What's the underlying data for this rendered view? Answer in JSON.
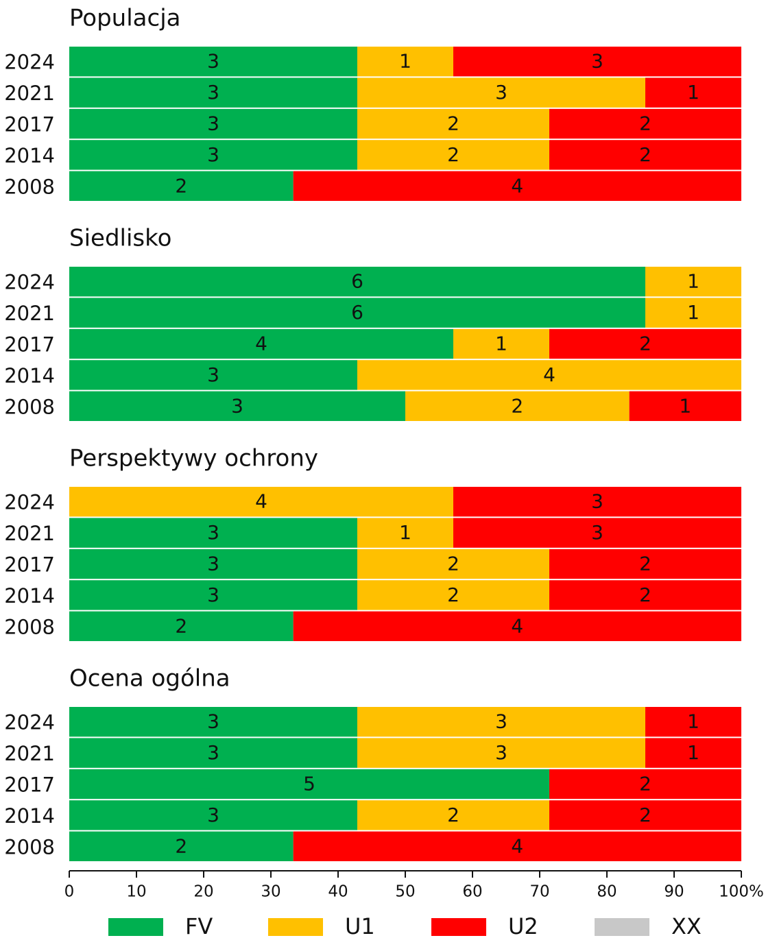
{
  "chart_data": [
    {
      "type": "stacked_percent_bar",
      "title": "Populacja",
      "categories": [
        "2024",
        "2021",
        "2017",
        "2014",
        "2008"
      ],
      "series": [
        {
          "name": "FV",
          "color": "#00b050",
          "values": [
            3,
            3,
            3,
            3,
            2
          ]
        },
        {
          "name": "U1",
          "color": "#ffc000",
          "values": [
            1,
            3,
            2,
            2,
            0
          ]
        },
        {
          "name": "U2",
          "color": "#ff0000",
          "values": [
            3,
            1,
            2,
            2,
            4
          ]
        },
        {
          "name": "XX",
          "color": "#c8c8c8",
          "values": [
            0,
            0,
            0,
            0,
            0
          ]
        }
      ]
    },
    {
      "type": "stacked_percent_bar",
      "title": "Siedlisko",
      "categories": [
        "2024",
        "2021",
        "2017",
        "2014",
        "2008"
      ],
      "series": [
        {
          "name": "FV",
          "color": "#00b050",
          "values": [
            6,
            6,
            4,
            3,
            3
          ]
        },
        {
          "name": "U1",
          "color": "#ffc000",
          "values": [
            1,
            1,
            1,
            4,
            2
          ]
        },
        {
          "name": "U2",
          "color": "#ff0000",
          "values": [
            0,
            0,
            2,
            0,
            1
          ]
        },
        {
          "name": "XX",
          "color": "#c8c8c8",
          "values": [
            0,
            0,
            0,
            0,
            0
          ]
        }
      ]
    },
    {
      "type": "stacked_percent_bar",
      "title": "Perspektywy ochrony",
      "categories": [
        "2024",
        "2021",
        "2017",
        "2014",
        "2008"
      ],
      "series": [
        {
          "name": "FV",
          "color": "#00b050",
          "values": [
            0,
            3,
            3,
            3,
            2
          ]
        },
        {
          "name": "U1",
          "color": "#ffc000",
          "values": [
            4,
            1,
            2,
            2,
            0
          ]
        },
        {
          "name": "U2",
          "color": "#ff0000",
          "values": [
            3,
            3,
            2,
            2,
            4
          ]
        },
        {
          "name": "XX",
          "color": "#c8c8c8",
          "values": [
            0,
            0,
            0,
            0,
            0
          ]
        }
      ]
    },
    {
      "type": "stacked_percent_bar",
      "title": "Ocena ogólna",
      "categories": [
        "2024",
        "2021",
        "2017",
        "2014",
        "2008"
      ],
      "series": [
        {
          "name": "FV",
          "color": "#00b050",
          "values": [
            3,
            3,
            5,
            3,
            2
          ]
        },
        {
          "name": "U1",
          "color": "#ffc000",
          "values": [
            3,
            3,
            0,
            2,
            0
          ]
        },
        {
          "name": "U2",
          "color": "#ff0000",
          "values": [
            1,
            1,
            2,
            2,
            4
          ]
        },
        {
          "name": "XX",
          "color": "#c8c8c8",
          "values": [
            0,
            0,
            0,
            0,
            0
          ]
        }
      ],
      "xlim": [
        0,
        100
      ],
      "xticks": [
        0,
        10,
        20,
        30,
        40,
        50,
        60,
        70,
        80,
        90,
        {
          "value": 100,
          "label": "100%"
        }
      ],
      "legend": "bottom"
    }
  ]
}
